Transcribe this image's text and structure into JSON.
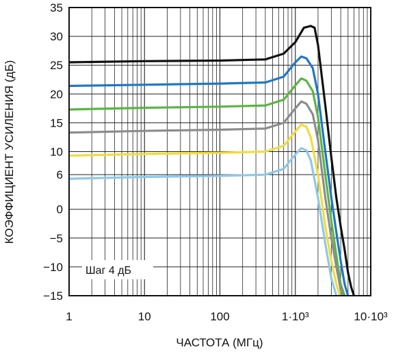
{
  "chart_data": {
    "type": "line",
    "xlabel": "ЧАСТОТА (МГц)",
    "ylabel": "КОЭФФИЦИЕНТ УСИЛЕНИЯ (дБ)",
    "x_scale": "log",
    "xlim": [
      1,
      10000
    ],
    "ylim": [
      -15,
      35
    ],
    "grid": true,
    "x_ticks": [
      {
        "value": 1,
        "label": "1"
      },
      {
        "value": 10,
        "label": "10"
      },
      {
        "value": 100,
        "label": "100"
      },
      {
        "value": 1000,
        "label": "1·10³"
      },
      {
        "value": 10000,
        "label": "10·10³"
      }
    ],
    "y_ticks": [
      {
        "value": 35,
        "label": "35"
      },
      {
        "value": 30,
        "label": "30"
      },
      {
        "value": 25,
        "label": "25"
      },
      {
        "value": 20,
        "label": "20"
      },
      {
        "value": 15,
        "label": "15"
      },
      {
        "value": 10,
        "label": "10"
      },
      {
        "value": 6,
        "label": "6"
      },
      {
        "value": 0,
        "label": "0"
      },
      {
        "value": -5,
        "label": "−5"
      },
      {
        "value": -10,
        "label": "−10"
      },
      {
        "value": -15,
        "label": "−15"
      }
    ],
    "annotation": "Шаг 4 дБ",
    "series": [
      {
        "color": "#111111",
        "x": [
          1,
          10,
          100,
          400,
          700,
          1000,
          1300,
          1600,
          1800,
          2000,
          2500,
          3000,
          3500,
          4000,
          4500,
          5000,
          5500,
          6000
        ],
        "y": [
          25.5,
          25.7,
          25.8,
          26.0,
          27.0,
          29.0,
          31.5,
          31.8,
          31.5,
          28.5,
          18.0,
          9.0,
          2.0,
          -3.0,
          -7.0,
          -11.0,
          -13.5,
          -15.0
        ]
      },
      {
        "color": "#1f77c4",
        "x": [
          1,
          10,
          100,
          400,
          700,
          1000,
          1200,
          1400,
          1700,
          2000,
          2500,
          3000,
          3500,
          4000,
          4500,
          5000
        ],
        "y": [
          21.4,
          21.6,
          21.8,
          22.0,
          23.0,
          25.5,
          26.5,
          26.2,
          24.5,
          20.0,
          10.0,
          2.0,
          -4.0,
          -9.0,
          -13.0,
          -15.0
        ]
      },
      {
        "color": "#5cb445",
        "x": [
          1,
          10,
          100,
          400,
          700,
          1000,
          1200,
          1400,
          1700,
          2000,
          2500,
          3000,
          3500,
          4000,
          4500
        ],
        "y": [
          17.3,
          17.6,
          17.8,
          18.0,
          19.0,
          21.5,
          22.7,
          22.3,
          20.5,
          16.0,
          6.0,
          -2.0,
          -8.0,
          -13.0,
          -15.0
        ]
      },
      {
        "color": "#8c8c8c",
        "x": [
          1,
          10,
          100,
          400,
          700,
          1000,
          1200,
          1400,
          1700,
          2000,
          2500,
          3000,
          3500,
          4000,
          4300
        ],
        "y": [
          13.3,
          13.6,
          13.8,
          14.0,
          15.0,
          17.5,
          18.7,
          18.3,
          16.5,
          12.0,
          2.0,
          -5.0,
          -10.0,
          -14.0,
          -15.0
        ]
      },
      {
        "color": "#f0dc3c",
        "x": [
          1,
          10,
          100,
          400,
          700,
          1000,
          1200,
          1400,
          1600,
          2000,
          2500,
          3000,
          3500,
          3900
        ],
        "y": [
          9.3,
          9.6,
          9.8,
          10.0,
          11.0,
          13.5,
          14.7,
          14.3,
          12.5,
          6.0,
          -3.0,
          -9.0,
          -13.0,
          -15.0
        ]
      },
      {
        "color": "#8ec8e8",
        "x": [
          1,
          10,
          100,
          400,
          700,
          1000,
          1200,
          1400,
          1600,
          2000,
          2500,
          3000,
          3500
        ],
        "y": [
          5.3,
          5.6,
          5.8,
          6.0,
          7.0,
          9.5,
          10.6,
          10.2,
          8.5,
          2.0,
          -6.0,
          -12.0,
          -15.0
        ]
      }
    ]
  }
}
